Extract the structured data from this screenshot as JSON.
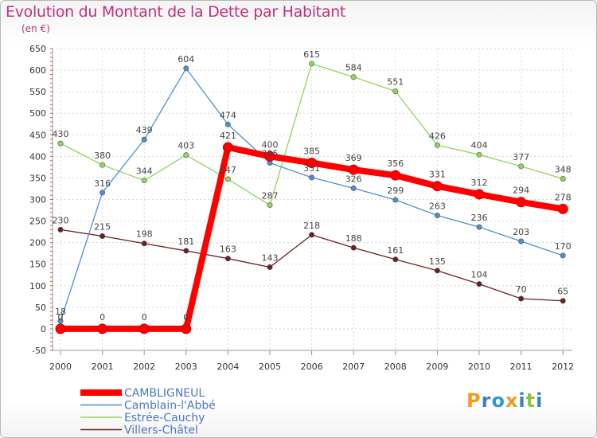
{
  "chart_data": {
    "type": "line",
    "title": "Evolution du Montant de la Dette par Habitant",
    "subtitle": "(en €)",
    "xlabel": "",
    "ylabel": "",
    "ylim": [
      -50,
      650
    ],
    "yticks": [
      "-50",
      "0",
      "50",
      "100",
      "150",
      "200",
      "250",
      "300",
      "350",
      "400",
      "450",
      "500",
      "550",
      "600",
      "650"
    ],
    "categories": [
      "2000",
      "2001",
      "2002",
      "2003",
      "2004",
      "2005",
      "2006",
      "2007",
      "2008",
      "2009",
      "2010",
      "2011",
      "2012"
    ],
    "grid": true,
    "legend_position": "bottom-left",
    "series": [
      {
        "name": "CAMBLIGNEUL",
        "color": "#ff0000",
        "values": [
          0,
          0,
          0,
          0,
          421,
          400,
          385,
          369,
          356,
          331,
          312,
          294,
          278
        ]
      },
      {
        "name": "Camblain-l'Abbé",
        "color": "#4f8fd0",
        "values": [
          18,
          316,
          439,
          604,
          474,
          385,
          351,
          326,
          299,
          263,
          236,
          203,
          170
        ]
      },
      {
        "name": "Estrée-Cauchy",
        "color": "#8fd659",
        "values": [
          430,
          380,
          344,
          403,
          347,
          287,
          615,
          584,
          551,
          426,
          404,
          377,
          348
        ]
      },
      {
        "name": "Villers-Châtel",
        "color": "#6b1f1f",
        "values": [
          230,
          215,
          198,
          181,
          163,
          143,
          218,
          188,
          161,
          135,
          104,
          70,
          65
        ]
      }
    ]
  },
  "logo": {
    "letters": [
      "P",
      "r",
      "o",
      "x",
      "i",
      "t",
      "i"
    ],
    "colors": [
      "#f29a1f",
      "#3b82c4",
      "#2f9ad6",
      "#f29a1f",
      "#3b82c4",
      "#8cc63f",
      "#3b82c4"
    ]
  }
}
